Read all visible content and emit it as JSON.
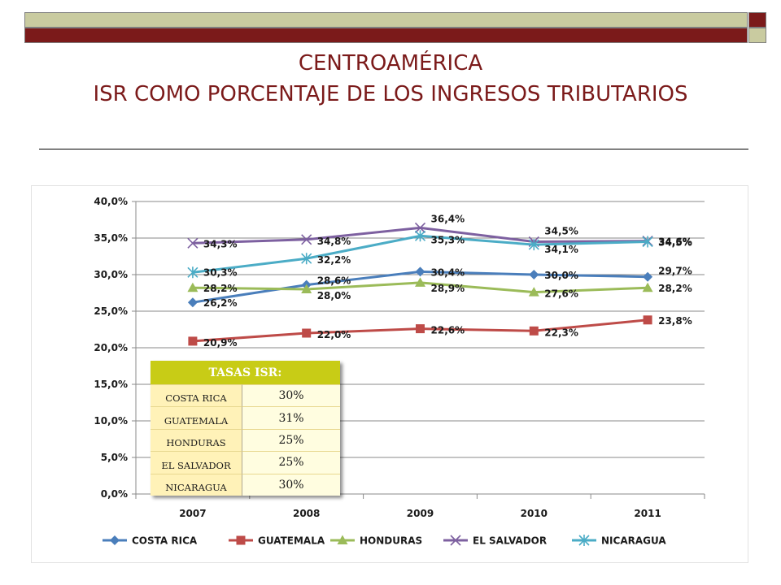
{
  "slide": {
    "title_line1": "CENTROAMÉRICA",
    "title_line2": "ISR COMO PORCENTAJE DE LOS INGRESOS TRIBUTARIOS"
  },
  "rates_table": {
    "header": "TASAS ISR:",
    "rows": [
      {
        "country": "COSTA RICA",
        "rate": "30%"
      },
      {
        "country": "GUATEMALA",
        "rate": "31%"
      },
      {
        "country": "HONDURAS",
        "rate": "25%"
      },
      {
        "country": "EL SALVADOR",
        "rate": "25%"
      },
      {
        "country": "NICARAGUA",
        "rate": "30%"
      }
    ]
  },
  "chart_data": {
    "type": "line",
    "x": [
      "2007",
      "2008",
      "2009",
      "2010",
      "2011"
    ],
    "ylim": [
      0,
      40
    ],
    "yticks": [
      "0,0%",
      "5,0%",
      "10,0%",
      "15,0%",
      "20,0%",
      "25,0%",
      "30,0%",
      "35,0%",
      "40,0%"
    ],
    "grid": true,
    "legend": "bottom",
    "series": [
      {
        "name": "COSTA RICA",
        "color": "#4a7ebb",
        "marker": "diamond",
        "values": [
          26.2,
          28.6,
          30.4,
          30.0,
          29.7
        ],
        "labels": [
          "26,2%",
          "28,6%",
          "30,4%",
          "30,0%",
          "29,7%"
        ]
      },
      {
        "name": "GUATEMALA",
        "color": "#be4b48",
        "marker": "square",
        "values": [
          20.9,
          22.0,
          22.6,
          22.3,
          23.8
        ],
        "labels": [
          "20,9%",
          "22,0%",
          "22,6%",
          "22,3%",
          "23,8%"
        ]
      },
      {
        "name": "HONDURAS",
        "color": "#9bbb59",
        "marker": "triangle",
        "values": [
          28.2,
          28.0,
          28.9,
          27.6,
          28.2
        ],
        "labels": [
          "28,2%",
          "28,0%",
          "28,9%",
          "27,6%",
          "28,2%"
        ]
      },
      {
        "name": "EL SALVADOR",
        "color": "#7d60a0",
        "marker": "x",
        "values": [
          34.3,
          34.8,
          36.4,
          34.5,
          34.6
        ],
        "labels": [
          "34,3%",
          "34,8%",
          "36,4%",
          "34,5%",
          "34,6%"
        ]
      },
      {
        "name": "NICARAGUA",
        "color": "#4bacc6",
        "marker": "star",
        "values": [
          30.3,
          32.2,
          35.3,
          34.1,
          34.5
        ],
        "labels": [
          "30,3%",
          "32,2%",
          "35,3%",
          "34,1%",
          "34,5%"
        ]
      }
    ]
  }
}
